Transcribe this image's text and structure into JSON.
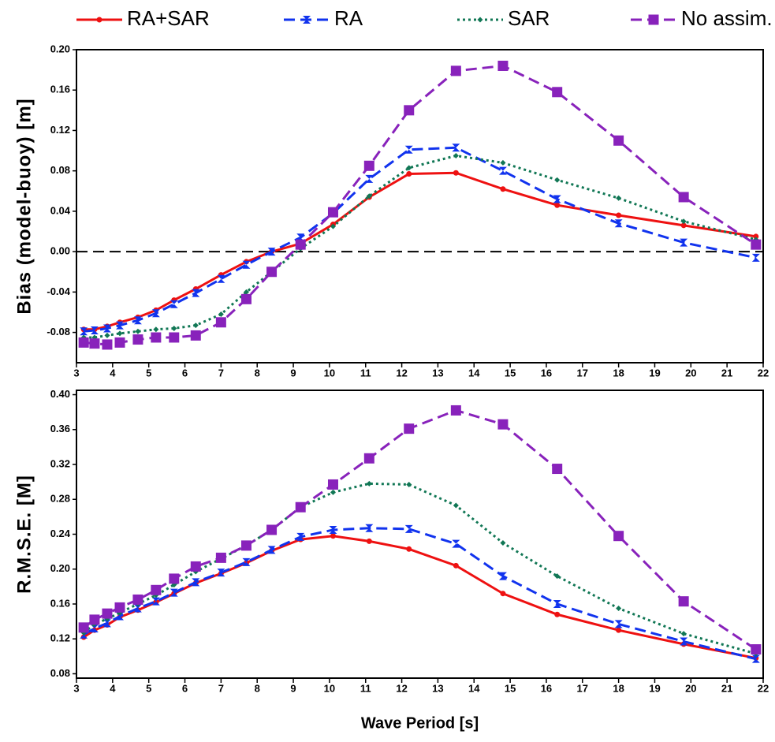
{
  "chart_data": [
    {
      "type": "line",
      "ylabel": "Bias (model-buoy)   [m]",
      "legend": true,
      "legend_position": "top",
      "zero_line": true,
      "x": [
        3.2,
        3.5,
        3.85,
        4.2,
        4.7,
        5.2,
        5.7,
        6.3,
        7.0,
        7.7,
        8.4,
        9.2,
        10.1,
        11.1,
        12.2,
        13.5,
        14.8,
        16.3,
        18.0,
        19.8,
        21.8
      ],
      "xlim": [
        3,
        22
      ],
      "xticks": [
        3,
        4,
        5,
        6,
        7,
        8,
        9,
        10,
        11,
        12,
        13,
        14,
        15,
        16,
        17,
        18,
        19,
        20,
        21,
        22
      ],
      "ylim": [
        -0.11,
        0.2
      ],
      "yticks": [
        {
          "value": 0.2,
          "label": "0.20"
        },
        {
          "value": 0.16,
          "label": "0.16"
        },
        {
          "value": 0.12,
          "label": "0.12"
        },
        {
          "value": 0.08,
          "label": "0.08"
        },
        {
          "value": 0.04,
          "label": "0.04"
        },
        {
          "value": 0,
          "label": "0.00"
        },
        {
          "value": -0.04,
          "label": "-0.04"
        },
        {
          "value": -0.08,
          "label": "-0.08"
        }
      ],
      "series": [
        {
          "name": "RA+SAR",
          "color": "#ee1111",
          "dash": "solid",
          "marker": "circle",
          "values": [
            -0.077,
            -0.077,
            -0.074,
            -0.07,
            -0.065,
            -0.058,
            -0.048,
            -0.037,
            -0.023,
            -0.01,
            0.0,
            0.008,
            0.027,
            0.054,
            0.077,
            0.078,
            0.062,
            0.046,
            0.036,
            0.026,
            0.015
          ]
        },
        {
          "name": "RA",
          "color": "#1133ee",
          "dash": "dashed",
          "marker": "hourglass",
          "values": [
            -0.079,
            -0.078,
            -0.076,
            -0.073,
            -0.068,
            -0.061,
            -0.052,
            -0.041,
            -0.027,
            -0.013,
            0.0,
            0.014,
            0.038,
            0.072,
            0.101,
            0.103,
            0.08,
            0.052,
            0.028,
            0.009,
            -0.006
          ]
        },
        {
          "name": "SAR",
          "color": "#117755",
          "dash": "dotted",
          "marker": "diamond",
          "values": [
            -0.085,
            -0.085,
            -0.083,
            -0.081,
            -0.079,
            -0.077,
            -0.076,
            -0.073,
            -0.062,
            -0.04,
            -0.02,
            0.003,
            0.025,
            0.055,
            0.083,
            0.095,
            0.088,
            0.071,
            0.053,
            0.03,
            0.012
          ]
        },
        {
          "name": "No assim.",
          "color": "#8822bb",
          "dash": "dashed",
          "marker": "square",
          "values": [
            -0.09,
            -0.091,
            -0.092,
            -0.09,
            -0.087,
            -0.085,
            -0.085,
            -0.083,
            -0.07,
            -0.047,
            -0.02,
            0.007,
            0.039,
            0.085,
            0.14,
            0.179,
            0.184,
            0.158,
            0.11,
            0.054,
            0.007
          ]
        }
      ]
    },
    {
      "type": "line",
      "ylabel": "R.M.S.E.   [M]",
      "xlabel": "Wave   Period   [s]",
      "legend": false,
      "zero_line": false,
      "x": [
        3.2,
        3.5,
        3.85,
        4.2,
        4.7,
        5.2,
        5.7,
        6.3,
        7.0,
        7.7,
        8.4,
        9.2,
        10.1,
        11.1,
        12.2,
        13.5,
        14.8,
        16.3,
        18.0,
        19.8,
        21.8
      ],
      "xlim": [
        3,
        22
      ],
      "xticks": [
        3,
        4,
        5,
        6,
        7,
        8,
        9,
        10,
        11,
        12,
        13,
        14,
        15,
        16,
        17,
        18,
        19,
        20,
        21,
        22
      ],
      "ylim": [
        0.075,
        0.405
      ],
      "yticks": [
        {
          "value": 0.4,
          "label": "0.40"
        },
        0.36,
        0.32,
        0.28,
        0.24,
        {
          "value": 0.2,
          "label": "0.20"
        },
        0.16,
        0.12,
        0.08
      ],
      "series": [
        {
          "color": "#ee1111",
          "dash": "solid",
          "marker": "circle",
          "values": [
            0.122,
            0.13,
            0.136,
            0.145,
            0.153,
            0.162,
            0.172,
            0.184,
            0.195,
            0.207,
            0.221,
            0.234,
            0.238,
            0.232,
            0.223,
            0.204,
            0.172,
            0.148,
            0.13,
            0.114,
            0.098
          ]
        },
        {
          "color": "#1133ee",
          "dash": "dashed",
          "marker": "hourglass",
          "values": [
            0.125,
            0.132,
            0.138,
            0.146,
            0.155,
            0.163,
            0.173,
            0.185,
            0.196,
            0.208,
            0.222,
            0.237,
            0.245,
            0.247,
            0.246,
            0.229,
            0.192,
            0.16,
            0.137,
            0.117,
            0.097
          ]
        },
        {
          "color": "#117755",
          "dash": "dotted",
          "marker": "diamond",
          "values": [
            0.127,
            0.137,
            0.143,
            0.15,
            0.16,
            0.17,
            0.182,
            0.197,
            0.212,
            0.227,
            0.245,
            0.271,
            0.288,
            0.298,
            0.297,
            0.273,
            0.23,
            0.192,
            0.155,
            0.126,
            0.103
          ]
        },
        {
          "color": "#8822bb",
          "dash": "dashed",
          "marker": "square",
          "values": [
            0.133,
            0.142,
            0.149,
            0.156,
            0.165,
            0.176,
            0.189,
            0.203,
            0.213,
            0.227,
            0.245,
            0.271,
            0.297,
            0.327,
            0.361,
            0.382,
            0.366,
            0.315,
            0.238,
            0.163,
            0.108
          ]
        }
      ]
    }
  ]
}
